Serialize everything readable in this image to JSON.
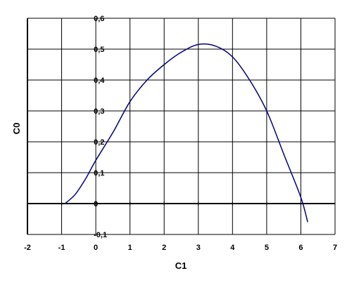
{
  "chart_data": {
    "type": "line",
    "xlabel": "C1",
    "ylabel": "C0",
    "xlim": [
      -2,
      7
    ],
    "ylim": [
      -0.1,
      0.6
    ],
    "x_ticks": [
      -2,
      -1,
      0,
      1,
      2,
      3,
      4,
      5,
      6,
      7
    ],
    "x_tick_labels": [
      "-2",
      "-1",
      "0",
      "1",
      "2",
      "3",
      "4",
      "5",
      "6",
      "7"
    ],
    "y_ticks": [
      -0.1,
      0,
      0.1,
      0.2,
      0.3,
      0.4,
      0.5,
      0.6
    ],
    "y_tick_labels": [
      "-0,1",
      "0",
      "0,1",
      "0,2",
      "0,3",
      "0,4",
      "0,5",
      "0,6"
    ],
    "grid": true,
    "legend": "none",
    "colors": {
      "line": "#000080",
      "grid": "#000000",
      "background": "#ffffff"
    },
    "series": [
      {
        "x": [
          -0.9,
          -0.6,
          -0.3,
          0,
          0.5,
          1,
          1.5,
          2,
          2.5,
          3,
          3.5,
          4,
          4.5,
          5,
          5.5,
          6,
          6.2
        ],
        "values": [
          0,
          0.03,
          0.08,
          0.14,
          0.23,
          0.33,
          0.4,
          0.45,
          0.49,
          0.515,
          0.51,
          0.475,
          0.4,
          0.3,
          0.16,
          0.02,
          -0.06
        ]
      }
    ]
  }
}
